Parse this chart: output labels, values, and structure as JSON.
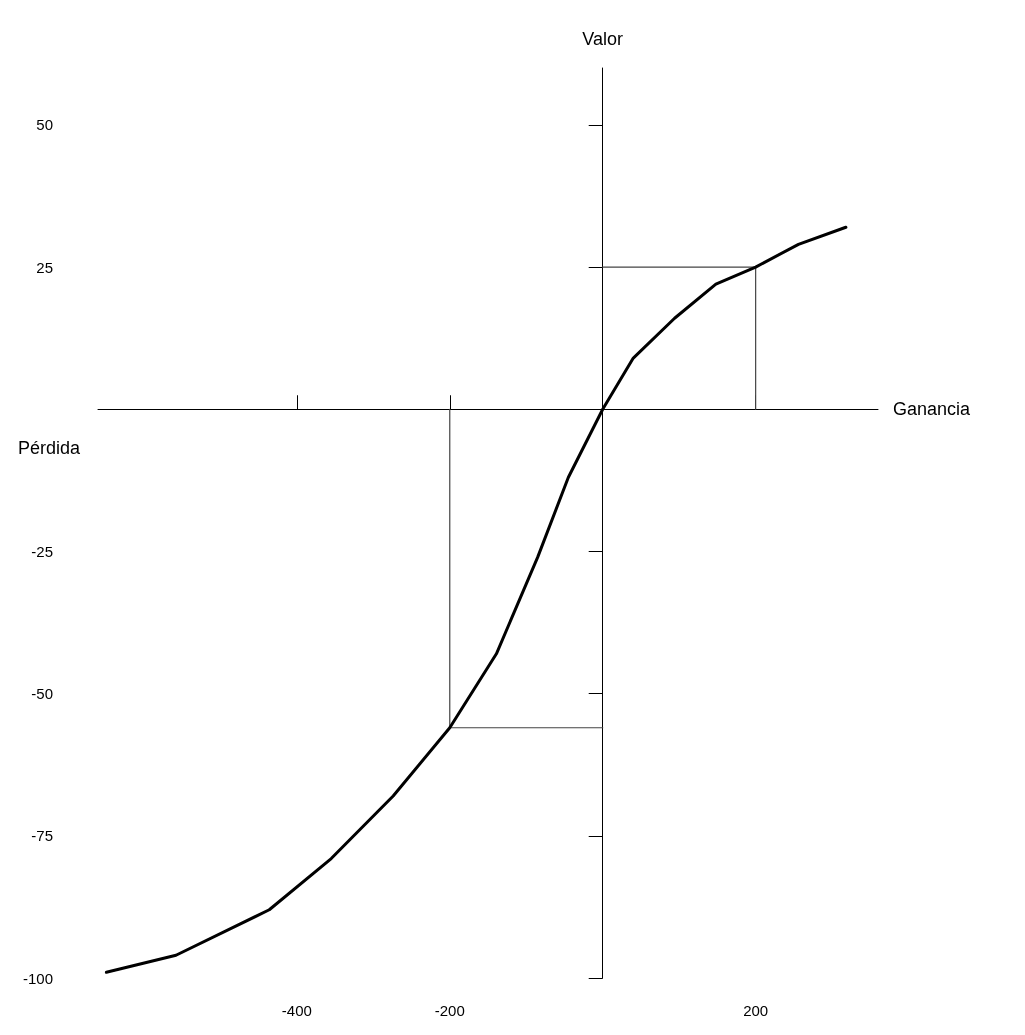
{
  "chart_data": {
    "type": "line",
    "ylabel": "Valor",
    "xlabel": "Ganancia",
    "annotations": [
      "Pérdida"
    ],
    "xlim": [
      -660,
      360
    ],
    "ylim": [
      -100,
      60
    ],
    "xticks": [
      -400,
      -200,
      200
    ],
    "yticks": [
      -100,
      -75,
      -50,
      -25,
      25,
      50
    ],
    "grid": false,
    "marker": "none",
    "line_style": "solid",
    "series": [
      {
        "color": "#000000",
        "x": [
          -649,
          -558,
          -436,
          -355,
          -274,
          -200,
          -139,
          -85,
          -45,
          0,
          40,
          94,
          148,
          200,
          256,
          318
        ],
        "values": [
          -99,
          -96,
          -88,
          -79,
          -68,
          -56,
          -43,
          -26,
          -12,
          0,
          9,
          16,
          22,
          25,
          29,
          32
        ]
      },
      {
        "color": "#444444",
        "x": [
          0,
          200,
          200
        ],
        "values": [
          25,
          25,
          0
        ]
      },
      {
        "color": "#444444",
        "x": [
          0,
          -200,
          -200
        ],
        "values": [
          -56,
          -56,
          0
        ]
      }
    ]
  }
}
